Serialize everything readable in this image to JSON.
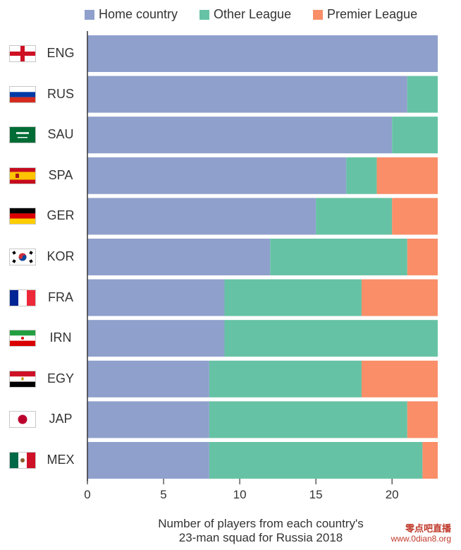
{
  "legend": [
    {
      "label": "Home country",
      "color": "#8fa0cc"
    },
    {
      "label": "Other League",
      "color": "#66c2a4"
    },
    {
      "label": "Premier League",
      "color": "#f98e69"
    }
  ],
  "chart_data": {
    "type": "bar",
    "orientation": "horizontal",
    "stacked": true,
    "categories": [
      "ENG",
      "RUS",
      "SAU",
      "SPA",
      "GER",
      "KOR",
      "FRA",
      "IRN",
      "EGY",
      "JAP",
      "MEX"
    ],
    "series": [
      {
        "name": "Home country",
        "color": "#8fa0cc",
        "values": [
          23,
          21,
          20,
          17,
          15,
          12,
          9,
          9,
          8,
          8,
          8
        ]
      },
      {
        "name": "Other League",
        "color": "#66c2a4",
        "values": [
          0,
          2,
          3,
          2,
          5,
          9,
          9,
          14,
          10,
          13,
          14
        ]
      },
      {
        "name": "Premier League",
        "color": "#f98e69",
        "values": [
          0,
          0,
          0,
          4,
          3,
          2,
          5,
          0,
          5,
          2,
          1
        ]
      }
    ],
    "xlim": [
      0,
      23
    ],
    "xticks": [
      0,
      5,
      10,
      15,
      20
    ],
    "xlabel_lines": [
      "Number of players from each country's",
      "23-man squad for Russia 2018"
    ],
    "grid": false,
    "legend_position": "top"
  },
  "watermark": {
    "line1": "零点吧直播",
    "line2": "www.0dian8.org"
  }
}
